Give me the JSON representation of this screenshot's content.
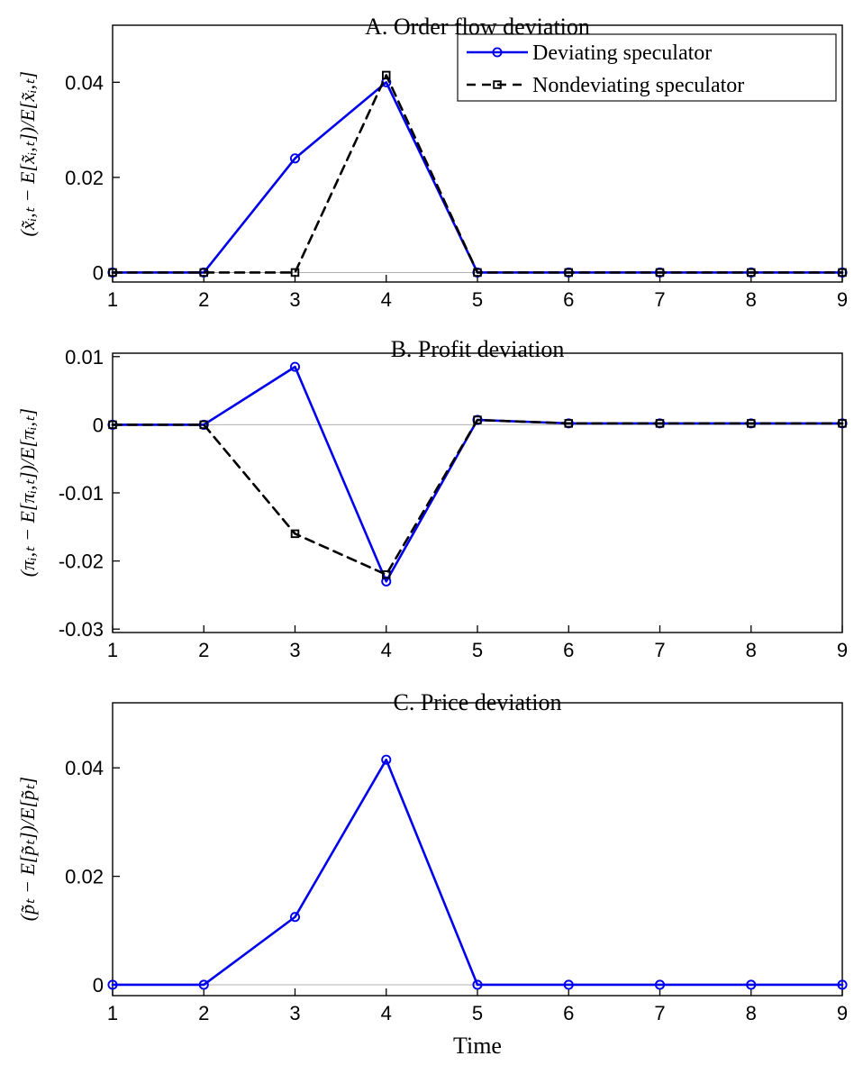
{
  "figure": {
    "xlabel": "Time"
  },
  "chart_data": [
    {
      "type": "line",
      "title": "A. Order flow deviation",
      "ylabel": "(x̃ᵢ,ₜ − E[x̃ᵢ,ₜ])/E[x̃ᵢ,ₜ]",
      "x": [
        1,
        2,
        3,
        4,
        5,
        6,
        7,
        8,
        9
      ],
      "xlim": [
        1,
        9
      ],
      "ylim": [
        -0.002,
        0.052
      ],
      "xticks": [
        1,
        2,
        3,
        4,
        5,
        6,
        7,
        8,
        9
      ],
      "xtick_labels": [
        "1",
        "2",
        "3",
        "4",
        "5",
        "6",
        "7",
        "8",
        "9"
      ],
      "yticks": [
        0,
        0.02,
        0.04
      ],
      "ytick_labels": [
        "0",
        "0.02",
        "0.04"
      ],
      "grid": false,
      "zero_line": true,
      "legend": true,
      "legend_position": "northeast",
      "series": [
        {
          "name": "Deviating speculator",
          "color": "#0000EE",
          "line": "solid",
          "marker": "circle",
          "values": [
            0,
            0,
            0.024,
            0.04,
            0,
            0,
            0,
            0,
            0
          ]
        },
        {
          "name": "Nondeviating speculator",
          "color": "#000000",
          "line": "dashed",
          "marker": "square",
          "values": [
            0,
            0,
            0,
            0.0415,
            0,
            0,
            0,
            0,
            0
          ]
        }
      ]
    },
    {
      "type": "line",
      "title": "B. Profit deviation",
      "ylabel": "(πᵢ,ₜ − E[πᵢ,ₜ])/E[πᵢ,ₜ]",
      "x": [
        1,
        2,
        3,
        4,
        5,
        6,
        7,
        8,
        9
      ],
      "xlim": [
        1,
        9
      ],
      "ylim": [
        -0.0305,
        0.0105
      ],
      "xticks": [
        1,
        2,
        3,
        4,
        5,
        6,
        7,
        8,
        9
      ],
      "xtick_labels": [
        "1",
        "2",
        "3",
        "4",
        "5",
        "6",
        "7",
        "8",
        "9"
      ],
      "yticks": [
        0.01,
        0,
        -0.01,
        -0.02,
        -0.03
      ],
      "ytick_labels": [
        "0.01",
        "0",
        "-0.01",
        "-0.02",
        "-0.03"
      ],
      "grid": false,
      "zero_line": true,
      "legend": false,
      "series": [
        {
          "name": "Deviating speculator",
          "color": "#0000EE",
          "line": "solid",
          "marker": "circle",
          "values": [
            0,
            0,
            0.0085,
            -0.023,
            0.0007,
            0.0002,
            0.0002,
            0.0002,
            0.0002
          ]
        },
        {
          "name": "Nondeviating speculator",
          "color": "#000000",
          "line": "dashed",
          "marker": "square",
          "values": [
            0,
            0,
            -0.016,
            -0.022,
            0.0007,
            0.0002,
            0.0002,
            0.0002,
            0.0002
          ]
        }
      ]
    },
    {
      "type": "line",
      "title": "C. Price deviation",
      "ylabel": "(p̃ₜ − E[p̃ₜ])/E[p̃ₜ]",
      "xlabel": "Time",
      "x": [
        1,
        2,
        3,
        4,
        5,
        6,
        7,
        8,
        9
      ],
      "xlim": [
        1,
        9
      ],
      "ylim": [
        -0.002,
        0.052
      ],
      "xticks": [
        1,
        2,
        3,
        4,
        5,
        6,
        7,
        8,
        9
      ],
      "xtick_labels": [
        "1",
        "2",
        "3",
        "4",
        "5",
        "6",
        "7",
        "8",
        "9"
      ],
      "yticks": [
        0,
        0.02,
        0.04
      ],
      "ytick_labels": [
        "0",
        "0.02",
        "0.04"
      ],
      "grid": false,
      "zero_line": true,
      "legend": false,
      "series": [
        {
          "name": "Deviating speculator",
          "color": "#0000EE",
          "line": "solid",
          "marker": "circle",
          "values": [
            0,
            0,
            0.0125,
            0.0415,
            0,
            0,
            0,
            0,
            0
          ]
        }
      ]
    }
  ]
}
